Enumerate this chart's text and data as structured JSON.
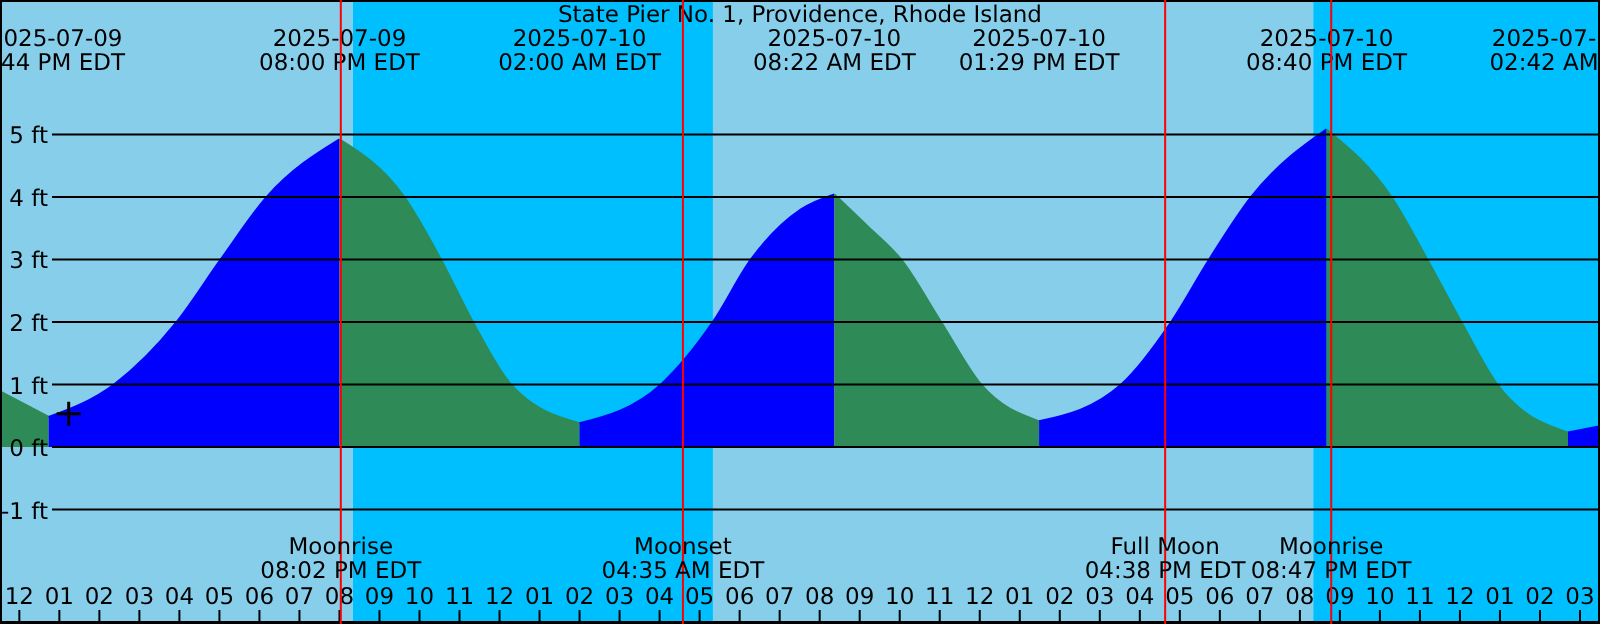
{
  "chart_data": {
    "type": "area",
    "title": "State Pier No. 1, Providence, Rhode Island",
    "series": [
      {
        "color": "#2e8b57",
        "x": [
          "2025-07-09T11:31",
          "2025-07-09T12:44"
        ],
        "values": [
          0.89,
          0.48
        ]
      },
      {
        "color": "#0000ff",
        "x": [
          "2025-07-09T12:44",
          "2025-07-09T14:22",
          "2025-07-09T15:56",
          "2025-07-09T17:02",
          "2025-07-09T18:11",
          "2025-07-09T20:00"
        ],
        "values": [
          0.48,
          1,
          2,
          3,
          4,
          4.92
        ]
      },
      {
        "color": "#2e8b57",
        "x": [
          "2025-07-09T20:00",
          "2025-07-09T21:37",
          "2025-07-09T22:32",
          "2025-07-09T23:20",
          "2025-07-10T00:17",
          "2025-07-10T02:00"
        ],
        "values": [
          4.92,
          4,
          3,
          2,
          1,
          0.38
        ]
      },
      {
        "color": "#0000ff",
        "x": [
          "2025-07-10T02:00",
          "2025-07-10T04:02",
          "2025-07-10T05:20",
          "2025-07-10T06:17",
          "2025-07-10T07:32",
          "2025-07-10T08:22"
        ],
        "values": [
          0.38,
          1,
          2,
          3,
          3.8,
          4.04
        ]
      },
      {
        "color": "#2e8b57",
        "x": [
          "2025-07-10T08:22",
          "2025-07-10T09:11",
          "2025-07-10T10:02",
          "2025-07-10T11:02",
          "2025-07-10T12:02",
          "2025-07-10T13:29"
        ],
        "values": [
          4.04,
          3.54,
          3,
          2,
          1,
          0.41
        ]
      },
      {
        "color": "#0000ff",
        "x": [
          "2025-07-10T13:29",
          "2025-07-10T15:32",
          "2025-07-10T16:47",
          "2025-07-10T17:44",
          "2025-07-10T18:47",
          "2025-07-10T20:40"
        ],
        "values": [
          0.41,
          1,
          2,
          3,
          4,
          5.08
        ]
      },
      {
        "color": "#2e8b57",
        "x": [
          "2025-07-10T20:40",
          "2025-07-10T22:17",
          "2025-07-10T23:11",
          "2025-07-11T00:02",
          "2025-07-11T00:56",
          "2025-07-11T02:42"
        ],
        "values": [
          5.08,
          4,
          3,
          2,
          1,
          0.23
        ]
      },
      {
        "color": "#0000ff",
        "x": [
          "2025-07-11T02:42",
          "2025-07-11T03:30"
        ],
        "values": [
          0.23,
          0.33
        ]
      },
      {
        "type": "scatter",
        "marker": "cross",
        "color": "#000000",
        "x": [
          "2025-07-09T13:14"
        ],
        "values": [
          0.53
        ]
      }
    ],
    "xlim": [
      "2025-07-09T11:31",
      "2025-07-11T03:30"
    ],
    "xticks": [
      {
        "value": "2025-07-09T12:00",
        "label": "12"
      },
      {
        "value": "2025-07-09T13:00",
        "label": "01"
      },
      {
        "value": "2025-07-09T14:00",
        "label": "02"
      },
      {
        "value": "2025-07-09T15:00",
        "label": "03"
      },
      {
        "value": "2025-07-09T16:00",
        "label": "04"
      },
      {
        "value": "2025-07-09T17:00",
        "label": "05"
      },
      {
        "value": "2025-07-09T18:00",
        "label": "06"
      },
      {
        "value": "2025-07-09T19:00",
        "label": "07"
      },
      {
        "value": "2025-07-09T20:00",
        "label": "08"
      },
      {
        "value": "2025-07-09T21:00",
        "label": "09"
      },
      {
        "value": "2025-07-09T22:00",
        "label": "10"
      },
      {
        "value": "2025-07-09T23:00",
        "label": "11"
      },
      {
        "value": "2025-07-10T00:00",
        "label": "12"
      },
      {
        "value": "2025-07-10T01:00",
        "label": "01"
      },
      {
        "value": "2025-07-10T02:00",
        "label": "02"
      },
      {
        "value": "2025-07-10T03:00",
        "label": "03"
      },
      {
        "value": "2025-07-10T04:00",
        "label": "04"
      },
      {
        "value": "2025-07-10T05:00",
        "label": "05"
      },
      {
        "value": "2025-07-10T06:00",
        "label": "06"
      },
      {
        "value": "2025-07-10T07:00",
        "label": "07"
      },
      {
        "value": "2025-07-10T08:00",
        "label": "08"
      },
      {
        "value": "2025-07-10T09:00",
        "label": "09"
      },
      {
        "value": "2025-07-10T10:00",
        "label": "10"
      },
      {
        "value": "2025-07-10T11:00",
        "label": "11"
      },
      {
        "value": "2025-07-10T12:00",
        "label": "12"
      },
      {
        "value": "2025-07-10T13:00",
        "label": "01"
      },
      {
        "value": "2025-07-10T14:00",
        "label": "02"
      },
      {
        "value": "2025-07-10T15:00",
        "label": "03"
      },
      {
        "value": "2025-07-10T16:00",
        "label": "04"
      },
      {
        "value": "2025-07-10T17:00",
        "label": "05"
      },
      {
        "value": "2025-07-10T18:00",
        "label": "06"
      },
      {
        "value": "2025-07-10T19:00",
        "label": "07"
      },
      {
        "value": "2025-07-10T20:00",
        "label": "08"
      },
      {
        "value": "2025-07-10T21:00",
        "label": "09"
      },
      {
        "value": "2025-07-10T22:00",
        "label": "10"
      },
      {
        "value": "2025-07-10T23:00",
        "label": "11"
      },
      {
        "value": "2025-07-11T00:00",
        "label": "12"
      },
      {
        "value": "2025-07-11T01:00",
        "label": "01"
      },
      {
        "value": "2025-07-11T02:00",
        "label": "02"
      },
      {
        "value": "2025-07-11T03:00",
        "label": "03"
      }
    ],
    "x2lim": [
      "2025-07-09T11:31",
      "2025-07-11T03:30"
    ],
    "x2ticks": [
      {
        "value": "2025-07-09T12:44",
        "label": "025-07-09\n44 PM EDT"
      },
      {
        "value": "2025-07-09T20:00",
        "label": "2025-07-09\n08:00 PM EDT"
      },
      {
        "value": "2025-07-10T02:00",
        "label": "2025-07-10\n02:00 AM EDT"
      },
      {
        "value": "2025-07-10T08:22",
        "label": "2025-07-10\n08:22 AM EDT"
      },
      {
        "value": "2025-07-10T13:29",
        "label": "2025-07-10\n01:29 PM EDT"
      },
      {
        "value": "2025-07-10T20:40",
        "label": "2025-07-10\n08:40 PM EDT"
      },
      {
        "value": "2025-07-11T02:42",
        "label": "2025-07-\n02:42 AM"
      }
    ],
    "ylim": [
      -2.8,
      7.15
    ],
    "yticks": [
      {
        "value": -1,
        "label": "-1 ft"
      },
      {
        "value": 0,
        "label": "0 ft"
      },
      {
        "value": 1,
        "label": "1 ft"
      },
      {
        "value": 2,
        "label": "2 ft"
      },
      {
        "value": 3,
        "label": "3 ft"
      },
      {
        "value": 4,
        "label": "4 ft"
      },
      {
        "value": 5,
        "label": "5 ft"
      }
    ],
    "grid": "y",
    "bands": [
      {
        "axis": "x",
        "from": "2025-07-09T11:31",
        "to": "2025-07-09T20:20",
        "color": "#87ceeb"
      },
      {
        "axis": "x",
        "from": "2025-07-09T20:20",
        "to": "2025-07-10T05:20",
        "color": "#00bfff"
      },
      {
        "axis": "x",
        "from": "2025-07-10T05:20",
        "to": "2025-07-10T20:20",
        "color": "#87ceeb"
      },
      {
        "axis": "x",
        "from": "2025-07-10T20:20",
        "to": "2025-07-11T03:30",
        "color": "#00bfff"
      }
    ],
    "ref_lines": [
      {
        "axis": "x",
        "value": "2025-07-09T20:02",
        "label": "Moonrise\n08:02 PM EDT",
        "color": "#ff0000"
      },
      {
        "axis": "x",
        "value": "2025-07-10T04:35",
        "label": "Moonset\n04:35 AM EDT",
        "color": "#ff0000"
      },
      {
        "axis": "x",
        "value": "2025-07-10T16:38",
        "label": "Full Moon\n04:38 PM EDT",
        "color": "#ff0000"
      },
      {
        "axis": "x",
        "value": "2025-07-10T20:47",
        "label": "Moonrise\n08:47 PM EDT",
        "color": "#ff0000"
      }
    ]
  }
}
